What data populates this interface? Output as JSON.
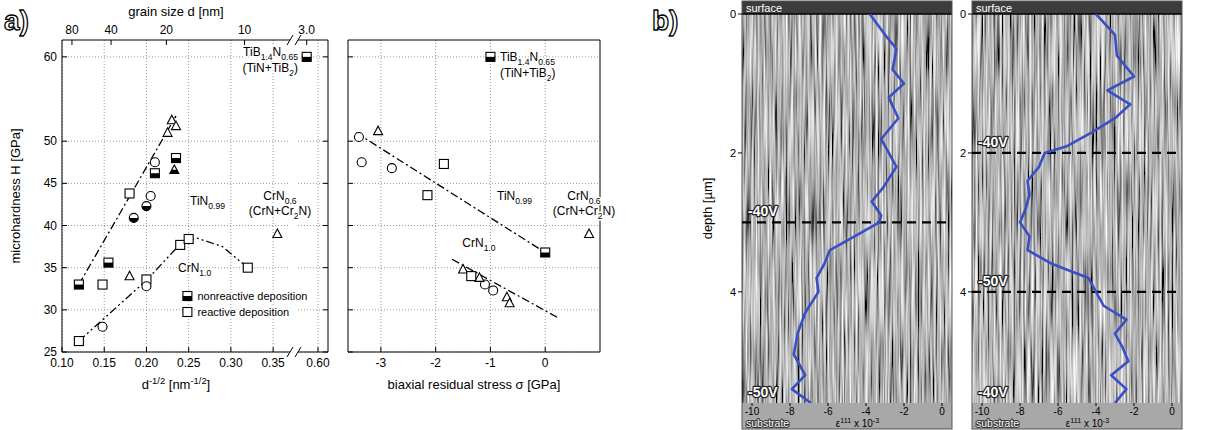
{
  "chart_data": [
    {
      "type": "scatter",
      "panel_label": "a)",
      "x_label": "d-1/2 [nm-1/2]",
      "y_label": "microhardness H [GPa]",
      "x2_label": "grain size d [nm]",
      "xlim": [
        0.1,
        0.37
      ],
      "xticks": [
        {
          "value": 0.1,
          "label": "0.10"
        },
        {
          "value": 0.15,
          "label": "0.15"
        },
        {
          "value": 0.2,
          "label": "0.20"
        },
        {
          "value": 0.25,
          "label": "0.25"
        },
        {
          "value": 0.3,
          "label": "0.30"
        },
        {
          "value": 0.35,
          "label": "0.35"
        }
      ],
      "x2ticks": [
        {
          "value": 0.1118,
          "label": "80"
        },
        {
          "value": 0.1581,
          "label": "40"
        },
        {
          "value": 0.2236,
          "label": "20"
        },
        {
          "value": 0.3162,
          "label": "10"
        }
      ],
      "ylim": [
        25,
        62
      ],
      "yticks": [
        25,
        30,
        35,
        40,
        45,
        50,
        60
      ],
      "grid": true,
      "legend": "lower right",
      "color": "#000000",
      "annotations": [
        "TiN0.99",
        "CrN1.0",
        "CrN0.6",
        "(CrN+Cr2N)"
      ],
      "series": [
        {
          "type": "line",
          "line_style": "dashdot",
          "x": [
            0.12,
            0.235
          ],
          "values": [
            33,
            53
          ]
        },
        {
          "type": "line",
          "line_style": "dashdotdot",
          "x": [
            0.12,
            0.15,
            0.2,
            0.24,
            0.26,
            0.29,
            0.32
          ],
          "values": [
            26.3,
            29,
            33.5,
            37.8,
            38.5,
            37.5,
            35
          ]
        },
        {
          "name": "nonreactive deposition",
          "marker": "half-square",
          "x": [
            0.12,
            0.155,
            0.21,
            0.235
          ],
          "values": [
            33,
            35.6,
            46.2,
            48
          ]
        },
        {
          "marker": "half-circle",
          "x": [
            0.185,
            0.2
          ],
          "values": [
            40.9,
            42.3
          ]
        },
        {
          "marker": "half-triangle",
          "x": [
            0.233
          ],
          "values": [
            46.6
          ]
        },
        {
          "name": "reactive deposition",
          "marker": "square",
          "x": [
            0.18,
            0.12,
            0.148,
            0.2,
            0.24,
            0.25,
            0.32
          ],
          "values": [
            43.8,
            26.3,
            33,
            33.6,
            37.7,
            38.4,
            35
          ]
        },
        {
          "marker": "circle",
          "x": [
            0.205,
            0.21,
            0.148,
            0.2
          ],
          "values": [
            43.5,
            47.5,
            28,
            32.8
          ]
        },
        {
          "marker": "triangle",
          "x": [
            0.225,
            0.23,
            0.235,
            0.18,
            0.355
          ],
          "values": [
            51,
            52.5,
            51.8,
            34,
            39
          ]
        }
      ]
    },
    {
      "type": "scatter",
      "xlim": [
        0.56,
        0.62
      ],
      "xticks": [
        {
          "value": 0.6,
          "label": "0.60"
        }
      ],
      "x2ticks": [
        {
          "value": 0.5774,
          "label": "3.0"
        }
      ],
      "ylim": [
        25,
        62
      ],
      "yticks": [
        25,
        30,
        35,
        40,
        45,
        50,
        60
      ],
      "grid": true,
      "tick_labels": "x",
      "color": "#000000",
      "annotations": [
        "TiB1.4N0.65",
        "(TiN+TiB2)"
      ],
      "series": [
        {
          "marker": "half-square",
          "x": [
            0.5774
          ],
          "values": [
            60
          ]
        }
      ]
    },
    {
      "type": "scatter",
      "x_label": "biaxial residual stress σ [GPa]",
      "xlim": [
        -3.6,
        1.0
      ],
      "xticks": [
        -3,
        -2,
        -1,
        0
      ],
      "ylim": [
        25,
        62
      ],
      "yticks": [
        25,
        30,
        35,
        40,
        45,
        50,
        60
      ],
      "grid": true,
      "tick_labels": "x",
      "color": "#000000",
      "annotations": [
        "TiB1.4N0.65",
        "(TiN+TiB2)",
        "TiN0.99",
        "CrN0.6",
        "(CrN+Cr2N)",
        "CrN1.0"
      ],
      "series": [
        {
          "type": "line",
          "line_style": "dashdot",
          "x": [
            -3.45,
            0
          ],
          "values": [
            51,
            36.8
          ]
        },
        {
          "type": "line",
          "line_style": "dashdot",
          "x": [
            -1.7,
            0.25
          ],
          "values": [
            36,
            29
          ]
        },
        {
          "marker": "half-square",
          "x": [
            -1.0,
            0.0
          ],
          "values": [
            60,
            36.8
          ]
        },
        {
          "marker": "circle",
          "x": [
            -3.4,
            -3.35,
            -2.8,
            -1.1,
            -0.95
          ],
          "values": [
            50.5,
            47.5,
            46.8,
            33,
            32.3
          ]
        },
        {
          "marker": "triangle",
          "x": [
            -3.05,
            -1.5,
            -1.2,
            -0.7,
            -0.65,
            0.8
          ],
          "values": [
            51.2,
            34.8,
            33.8,
            31.5,
            30.8,
            39
          ]
        },
        {
          "marker": "square",
          "x": [
            -2.15,
            -1.85,
            -1.35
          ],
          "values": [
            43.6,
            47.3,
            34
          ]
        }
      ]
    },
    {
      "type": "line",
      "panel_label": "b)",
      "y_label": "depth [µm]",
      "x_label": "ε111 x 10-3",
      "top_label": "surface",
      "bottom_label": "substrate",
      "xlim": [
        -10,
        0
      ],
      "xticks": [
        -10,
        -8,
        -6,
        -4,
        -2,
        0
      ],
      "ylim": [
        5.6,
        0
      ],
      "yticks": [
        0,
        2,
        4
      ],
      "layers": [
        {
          "label": "-40V",
          "end": 3
        },
        {
          "label": "-50V",
          "end": 5.6
        }
      ],
      "series": [
        {
          "color": "#3a4fc6",
          "x": [
            -3.8,
            -3.0,
            -2.4,
            -2.6,
            -2.0,
            -2.8,
            -2.3,
            -3.2,
            -2.8,
            -2.4,
            -3.1,
            -3.7,
            -3.2,
            -3.3,
            -4.6,
            -5.9,
            -6.2,
            -6.6,
            -6.5,
            -7.2,
            -7.6,
            -7.8,
            -7.2,
            -7.9,
            -6.9
          ],
          "values": [
            0,
            0.3,
            0.5,
            0.8,
            1.0,
            1.2,
            1.5,
            1.8,
            2.0,
            2.2,
            2.5,
            2.7,
            2.9,
            3.0,
            3.2,
            3.4,
            3.6,
            3.8,
            4.0,
            4.3,
            4.6,
            4.9,
            5.2,
            5.4,
            5.6
          ]
        }
      ]
    },
    {
      "type": "line",
      "x_label": "ε111 x 10-3",
      "top_label": "surface",
      "bottom_label": "substrate",
      "xlim": [
        -10,
        0
      ],
      "xticks": [
        -10,
        -8,
        -6,
        -4,
        -2,
        0
      ],
      "ylim": [
        5.6,
        0
      ],
      "yticks": [
        0,
        2,
        4
      ],
      "layers": [
        {
          "label": "-40V",
          "end": 2
        },
        {
          "label": "-50V",
          "end": 4
        },
        {
          "label": "-40V",
          "end": 5.6
        }
      ],
      "series": [
        {
          "color": "#3a4fc6",
          "x": [
            -4.0,
            -3.0,
            -2.9,
            -2.0,
            -3.4,
            -2.2,
            -3.0,
            -4.2,
            -5.5,
            -6.7,
            -7.0,
            -7.6,
            -7.5,
            -7.7,
            -8.0,
            -7.5,
            -7.6,
            -6.3,
            -4.4,
            -4.0,
            -3.6,
            -2.4,
            -3.0,
            -2.6,
            -2.3,
            -3.2,
            -2.4,
            -3.0
          ],
          "values": [
            0,
            0.3,
            0.6,
            0.9,
            1.1,
            1.3,
            1.5,
            1.7,
            1.9,
            2.0,
            2.2,
            2.4,
            2.6,
            2.8,
            3.0,
            3.2,
            3.4,
            3.6,
            3.8,
            4.0,
            4.2,
            4.4,
            4.6,
            4.8,
            5.0,
            5.2,
            5.4,
            5.6
          ]
        }
      ]
    }
  ]
}
